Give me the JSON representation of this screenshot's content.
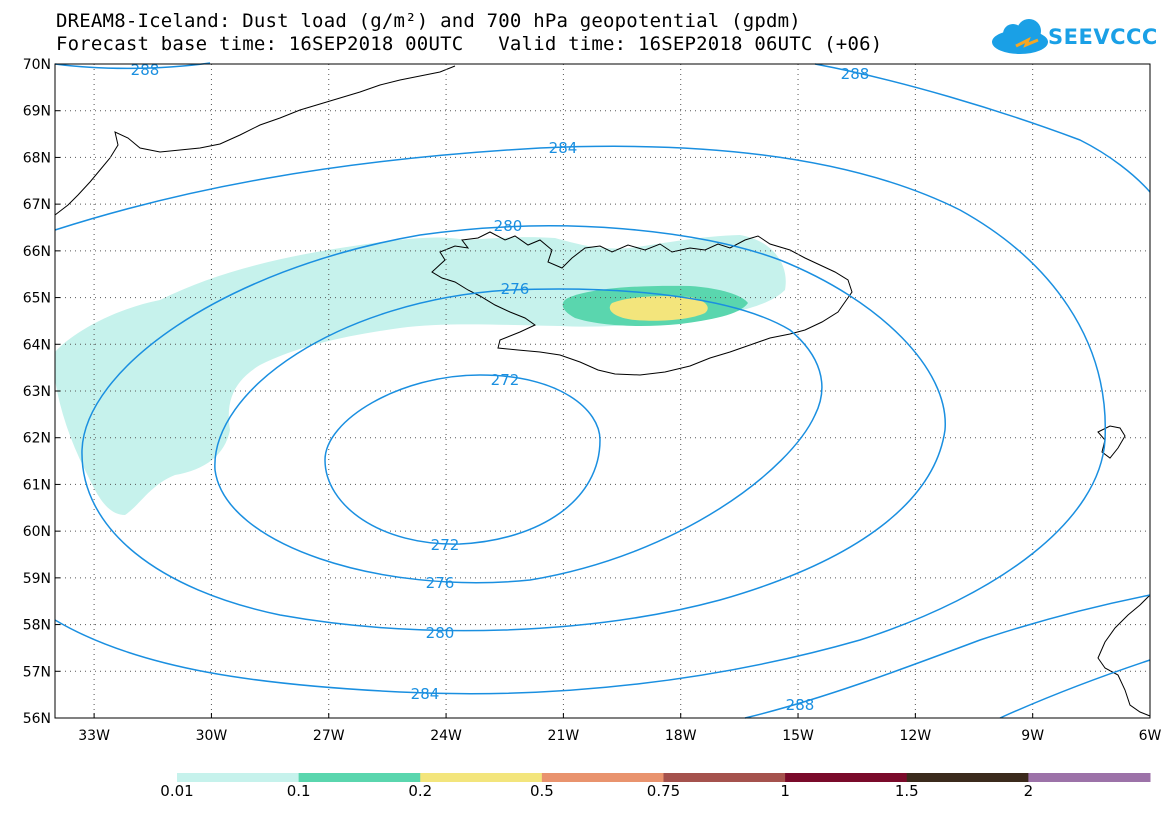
{
  "title": {
    "line1": "DREAM8-Iceland: Dust load (g/m²) and 700 hPa geopotential (gpdm)",
    "line2": "Forecast base time: 16SEP2018 00UTC   Valid time: 16SEP2018 06UTC (+06)"
  },
  "logo": {
    "text": "SEEVCCC",
    "icon": "cloud-icon"
  },
  "axes": {
    "lat_labels": [
      "70N",
      "69N",
      "68N",
      "67N",
      "66N",
      "65N",
      "64N",
      "63N",
      "62N",
      "61N",
      "60N",
      "59N",
      "58N",
      "57N",
      "56N"
    ],
    "lon_labels": [
      "33W",
      "30W",
      "27W",
      "24W",
      "21W",
      "18W",
      "15W",
      "12W",
      "9W",
      "6W"
    ],
    "lat_range": [
      56,
      70
    ],
    "lon_range": [
      -34,
      -6
    ],
    "grid": true
  },
  "contours": {
    "levels": [
      272,
      276,
      280,
      284,
      288
    ],
    "labels": [
      "272",
      "272",
      "276",
      "276",
      "280",
      "280",
      "284",
      "284",
      "288",
      "288",
      "288"
    ]
  },
  "colorbar": {
    "labels": [
      "0.01",
      "0.1",
      "0.2",
      "0.5",
      "0.75",
      "1",
      "1.5",
      "2"
    ],
    "colors": [
      "#c6f2ec",
      "#5ad6ae",
      "#f3e57c",
      "#e9936e",
      "#a5524d",
      "#7a0a2a",
      "#3b2a1c",
      "#9c72a8"
    ]
  },
  "colors": {
    "contour": "#1a8fe0",
    "coast": "#000000",
    "dust_low": "#c6f2ec",
    "dust_mid": "#5ad6ae",
    "dust_high": "#f3e57c"
  }
}
